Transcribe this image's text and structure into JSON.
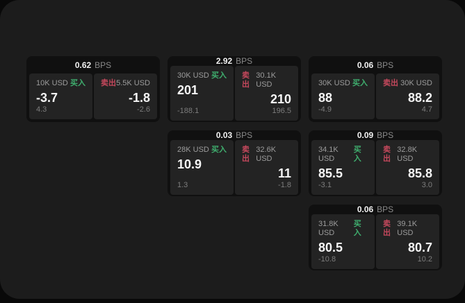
{
  "labels": {
    "buy": "买入",
    "sell": "卖出",
    "bps_unit": "BPS"
  },
  "colors": {
    "buy_green": "#3fae6e",
    "sell_red": "#c4485c",
    "panel_bg": "#1c1c1c",
    "card_bg": "#101010",
    "tile_bg": "#232323"
  },
  "cards": [
    {
      "bps": "0.62",
      "buy": {
        "amount": "10K USD",
        "main": "-3.7",
        "sub": "4.3"
      },
      "sell": {
        "amount": "5.5K USD",
        "main": "-1.8",
        "sub": "-2.6"
      }
    },
    {
      "bps": "2.92",
      "buy": {
        "amount": "30K USD",
        "main": "201",
        "sub": "-188.1"
      },
      "sell": {
        "amount": "30.1K USD",
        "main": "210",
        "sub": "196.5"
      }
    },
    {
      "bps": "0.06",
      "buy": {
        "amount": "30K USD",
        "main": "88",
        "sub": "-4.9"
      },
      "sell": {
        "amount": "30K USD",
        "main": "88.2",
        "sub": "4.7"
      }
    },
    {
      "bps": "0.03",
      "buy": {
        "amount": "28K USD",
        "main": "10.9",
        "sub": "1.3"
      },
      "sell": {
        "amount": "32.6K USD",
        "main": "11",
        "sub": "-1.8"
      }
    },
    {
      "bps": "0.09",
      "buy": {
        "amount": "34.1K USD",
        "main": "85.5",
        "sub": "-3.1"
      },
      "sell": {
        "amount": "32.8K USD",
        "main": "85.8",
        "sub": "3.0"
      }
    },
    {
      "bps": "0.06",
      "buy": {
        "amount": "31.8K USD",
        "main": "80.5",
        "sub": "-10.8"
      },
      "sell": {
        "amount": "39.1K USD",
        "main": "80.7",
        "sub": "10.2"
      }
    }
  ]
}
